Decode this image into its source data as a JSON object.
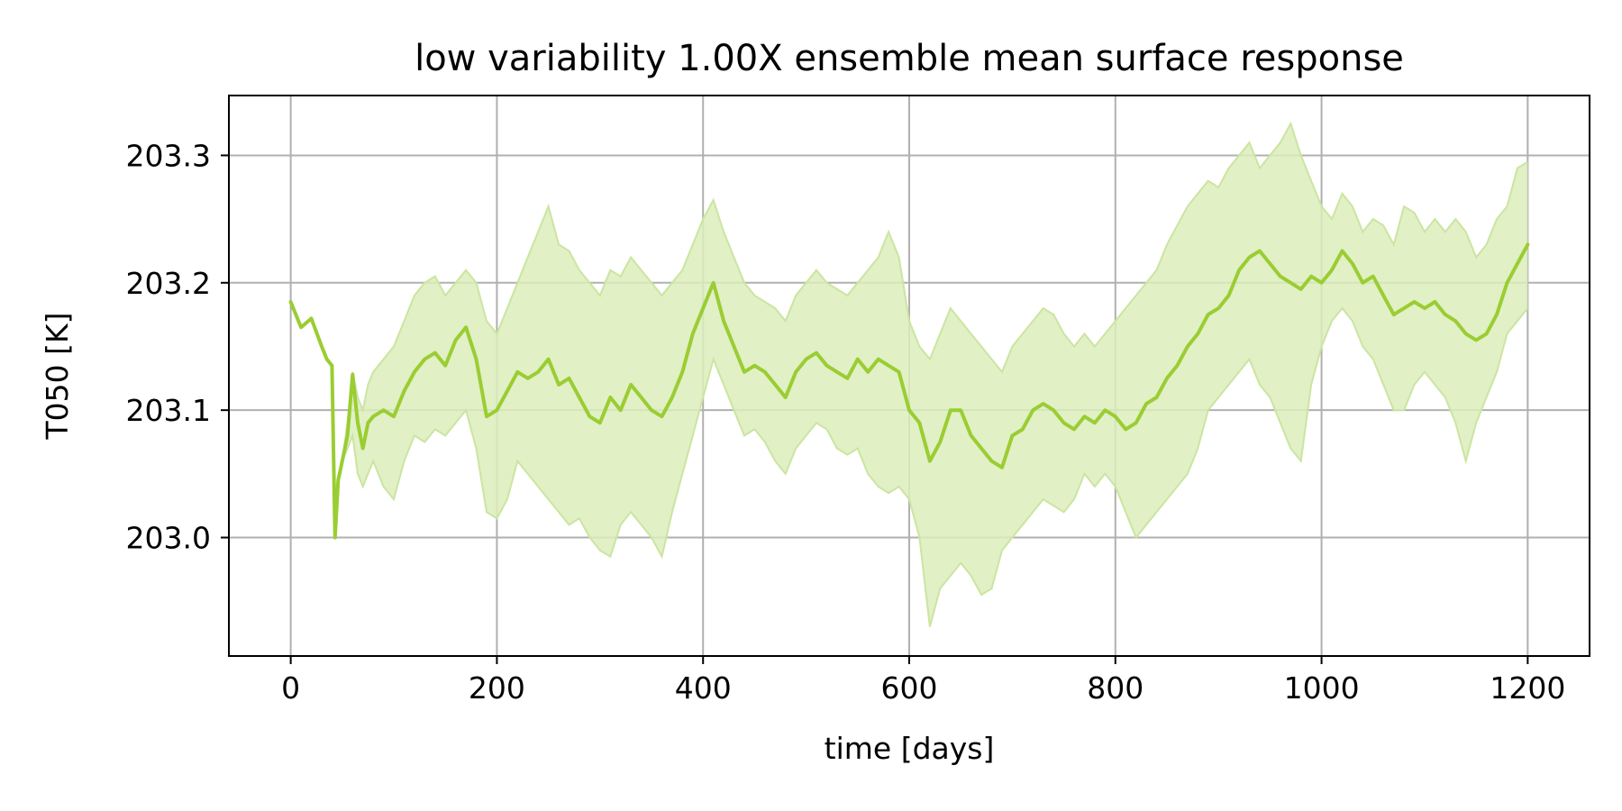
{
  "chart_data": {
    "type": "line",
    "title": "low variability 1.00X ensemble mean surface response",
    "xlabel": "time [days]",
    "ylabel": "T050 [K]",
    "xlim": [
      -60,
      1260
    ],
    "ylim": [
      202.907,
      203.347
    ],
    "xticks": [
      0,
      200,
      400,
      600,
      800,
      1000,
      1200
    ],
    "xtick_labels": [
      "0",
      "200",
      "400",
      "600",
      "800",
      "1000",
      "1200"
    ],
    "yticks": [
      203.0,
      203.1,
      203.2,
      203.3
    ],
    "ytick_labels": [
      "203.0",
      "203.1",
      "203.2",
      "203.3"
    ],
    "grid": true,
    "colors": {
      "line": "#9acd32",
      "band_fill": "#dcedbb",
      "band_edge": "#cbe5a1",
      "grid": "#b0b0b0"
    },
    "series": [
      {
        "x": [
          0,
          10,
          20,
          30,
          35,
          40,
          43,
          46,
          50,
          55,
          60,
          65,
          70,
          75,
          80,
          90,
          100,
          110,
          120,
          130,
          140,
          150,
          160,
          170,
          180,
          190,
          200,
          210,
          220,
          230,
          240,
          250,
          260,
          270,
          280,
          290,
          300,
          310,
          320,
          330,
          340,
          350,
          360,
          370,
          380,
          390,
          400,
          410,
          420,
          430,
          440,
          450,
          460,
          470,
          480,
          490,
          500,
          510,
          520,
          530,
          540,
          550,
          560,
          570,
          580,
          590,
          600,
          610,
          620,
          630,
          640,
          650,
          660,
          670,
          680,
          690,
          700,
          710,
          720,
          730,
          740,
          750,
          760,
          770,
          780,
          790,
          800,
          810,
          820,
          830,
          840,
          850,
          860,
          870,
          880,
          890,
          900,
          910,
          920,
          930,
          940,
          950,
          960,
          970,
          980,
          990,
          1000,
          1010,
          1020,
          1030,
          1040,
          1050,
          1060,
          1070,
          1080,
          1090,
          1100,
          1110,
          1120,
          1130,
          1140,
          1150,
          1160,
          1170,
          1180,
          1190,
          1200
        ],
        "y": [
          203.185,
          203.165,
          203.172,
          203.15,
          203.14,
          203.135,
          203.0,
          203.045,
          203.06,
          203.08,
          203.128,
          203.09,
          203.07,
          203.09,
          203.095,
          203.1,
          203.095,
          203.115,
          203.13,
          203.14,
          203.145,
          203.135,
          203.155,
          203.165,
          203.14,
          203.095,
          203.1,
          203.115,
          203.13,
          203.125,
          203.13,
          203.14,
          203.12,
          203.125,
          203.11,
          203.095,
          203.09,
          203.11,
          203.1,
          203.12,
          203.11,
          203.1,
          203.095,
          203.11,
          203.13,
          203.16,
          203.18,
          203.2,
          203.17,
          203.15,
          203.13,
          203.135,
          203.13,
          203.12,
          203.11,
          203.13,
          203.14,
          203.145,
          203.135,
          203.13,
          203.125,
          203.14,
          203.13,
          203.14,
          203.135,
          203.13,
          203.1,
          203.09,
          203.06,
          203.075,
          203.1,
          203.1,
          203.08,
          203.07,
          203.06,
          203.055,
          203.08,
          203.085,
          203.1,
          203.105,
          203.1,
          203.09,
          203.085,
          203.095,
          203.09,
          203.1,
          203.095,
          203.085,
          203.09,
          203.105,
          203.11,
          203.125,
          203.135,
          203.15,
          203.16,
          203.175,
          203.18,
          203.19,
          203.21,
          203.22,
          203.225,
          203.215,
          203.205,
          203.2,
          203.195,
          203.205,
          203.2,
          203.21,
          203.225,
          203.215,
          203.2,
          203.205,
          203.19,
          203.175,
          203.18,
          203.185,
          203.18,
          203.185,
          203.175,
          203.17,
          203.16,
          203.155,
          203.16,
          203.175,
          203.2,
          203.215,
          203.23
        ],
        "lower": [
          203.185,
          203.165,
          203.172,
          203.15,
          203.14,
          203.135,
          203.0,
          203.045,
          203.06,
          203.07,
          203.08,
          203.05,
          203.04,
          203.05,
          203.06,
          203.04,
          203.03,
          203.06,
          203.08,
          203.075,
          203.085,
          203.08,
          203.09,
          203.1,
          203.07,
          203.02,
          203.015,
          203.03,
          203.06,
          203.05,
          203.04,
          203.03,
          203.02,
          203.01,
          203.015,
          203.0,
          202.99,
          202.985,
          203.01,
          203.02,
          203.01,
          203.0,
          202.985,
          203.02,
          203.05,
          203.08,
          203.11,
          203.14,
          203.12,
          203.1,
          203.08,
          203.085,
          203.075,
          203.06,
          203.05,
          203.07,
          203.08,
          203.09,
          203.085,
          203.07,
          203.065,
          203.07,
          203.05,
          203.04,
          203.035,
          203.04,
          203.03,
          203.0,
          202.93,
          202.96,
          202.97,
          202.98,
          202.97,
          202.955,
          202.96,
          202.99,
          203.0,
          203.01,
          203.02,
          203.03,
          203.025,
          203.02,
          203.03,
          203.05,
          203.04,
          203.05,
          203.04,
          203.02,
          203.0,
          203.01,
          203.02,
          203.03,
          203.04,
          203.05,
          203.07,
          203.1,
          203.11,
          203.12,
          203.13,
          203.14,
          203.12,
          203.11,
          203.09,
          203.07,
          203.06,
          203.12,
          203.15,
          203.17,
          203.18,
          203.17,
          203.15,
          203.14,
          203.12,
          203.1,
          203.1,
          203.12,
          203.13,
          203.12,
          203.11,
          203.09,
          203.06,
          203.09,
          203.11,
          203.13,
          203.16,
          203.17,
          203.18
        ],
        "upper": [
          203.185,
          203.165,
          203.172,
          203.15,
          203.14,
          203.135,
          203.0,
          203.045,
          203.06,
          203.09,
          203.13,
          203.11,
          203.1,
          203.12,
          203.13,
          203.14,
          203.15,
          203.17,
          203.19,
          203.2,
          203.205,
          203.19,
          203.2,
          203.21,
          203.2,
          203.17,
          203.16,
          203.18,
          203.2,
          203.22,
          203.24,
          203.26,
          203.23,
          203.225,
          203.21,
          203.2,
          203.19,
          203.21,
          203.205,
          203.22,
          203.21,
          203.2,
          203.19,
          203.2,
          203.21,
          203.23,
          203.25,
          203.265,
          203.24,
          203.22,
          203.2,
          203.19,
          203.185,
          203.18,
          203.17,
          203.19,
          203.2,
          203.21,
          203.2,
          203.195,
          203.19,
          203.2,
          203.21,
          203.22,
          203.24,
          203.22,
          203.17,
          203.15,
          203.14,
          203.16,
          203.18,
          203.17,
          203.16,
          203.15,
          203.14,
          203.13,
          203.15,
          203.16,
          203.17,
          203.18,
          203.175,
          203.16,
          203.15,
          203.16,
          203.15,
          203.16,
          203.17,
          203.18,
          203.19,
          203.2,
          203.21,
          203.23,
          203.245,
          203.26,
          203.27,
          203.28,
          203.275,
          203.29,
          203.3,
          203.31,
          203.29,
          203.3,
          203.31,
          203.325,
          203.3,
          203.28,
          203.26,
          203.25,
          203.27,
          203.26,
          203.24,
          203.25,
          203.245,
          203.23,
          203.26,
          203.255,
          203.24,
          203.25,
          203.24,
          203.25,
          203.24,
          203.22,
          203.23,
          203.25,
          203.26,
          203.29,
          203.295
        ]
      }
    ]
  }
}
